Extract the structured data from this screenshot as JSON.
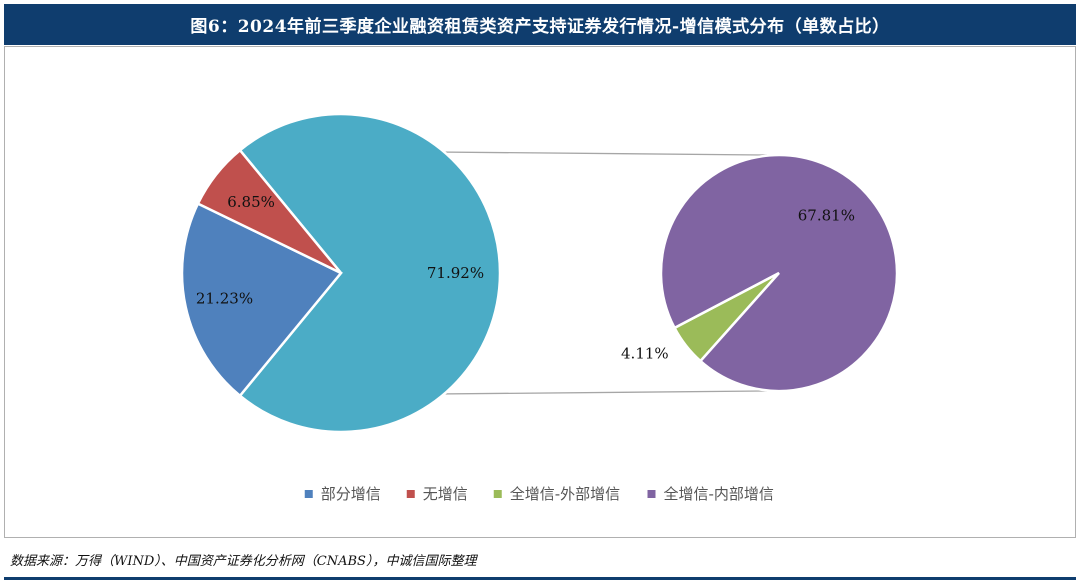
{
  "title": "图6：2024年前三季度企业融资租赁类资产支持证券发行情况-增信模式分布（单数占比）",
  "source": "数据来源：万得（WIND）、中国资产证券化分析网（CNABS），中诚信国际整理",
  "chart_data": {
    "type": "pie",
    "subtype": "pie-of-pie",
    "title": "图6：2024年前三季度企业融资租赁类资产支持证券发行情况-增信模式分布（单数占比）",
    "primary": {
      "slices": [
        {
          "name": "部分增信",
          "value": 21.23,
          "label": "21.23%",
          "color": "#4f81bd"
        },
        {
          "name": "无增信",
          "value": 6.85,
          "label": "6.85%",
          "color": "#c0504d"
        },
        {
          "name": "全增信",
          "value": 71.92,
          "label": "71.92%",
          "color": "#4bacc6"
        }
      ]
    },
    "secondary": {
      "slices": [
        {
          "name": "全增信-外部增信",
          "value": 4.11,
          "label": "4.11%",
          "color": "#9bbb59"
        },
        {
          "name": "全增信-内部增信",
          "value": 67.81,
          "label": "67.81%",
          "color": "#8064a2"
        }
      ]
    },
    "legend": {
      "position": "bottom",
      "items": [
        {
          "name": "部分增信",
          "color": "#4f81bd"
        },
        {
          "name": "无增信",
          "color": "#c0504d"
        },
        {
          "name": "全增信-外部增信",
          "color": "#9bbb59"
        },
        {
          "name": "全增信-内部增信",
          "color": "#8064a2"
        }
      ]
    }
  }
}
